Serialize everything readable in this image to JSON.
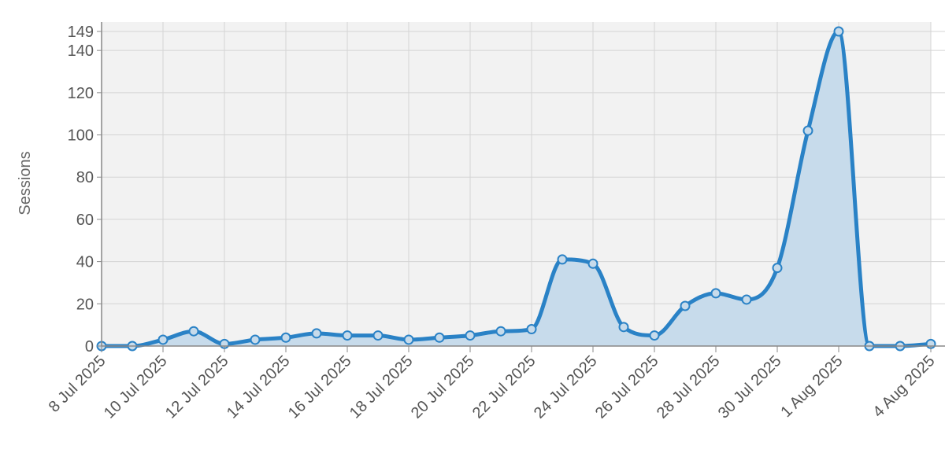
{
  "chart_data": {
    "type": "area",
    "ylabel": "Sessions",
    "xlabel": "",
    "title": "",
    "ylim": [
      0,
      149
    ],
    "y_ticks": [
      0,
      20,
      40,
      60,
      80,
      100,
      120,
      140,
      149
    ],
    "x_tick_labels": [
      "8 Jul 2025",
      "10 Jul 2025",
      "12 Jul 2025",
      "14 Jul 2025",
      "16 Jul 2025",
      "18 Jul 2025",
      "20 Jul 2025",
      "22 Jul 2025",
      "24 Jul 2025",
      "26 Jul 2025",
      "28 Jul 2025",
      "30 Jul 2025",
      "1 Aug 2025",
      "4 Aug 2025"
    ],
    "x_tick_dates": [
      "2025-07-08",
      "2025-07-10",
      "2025-07-12",
      "2025-07-14",
      "2025-07-16",
      "2025-07-18",
      "2025-07-20",
      "2025-07-22",
      "2025-07-24",
      "2025-07-26",
      "2025-07-28",
      "2025-07-30",
      "2025-08-01",
      "2025-08-04"
    ],
    "grid": true,
    "series": [
      {
        "name": "",
        "x": [
          "2025-07-08",
          "2025-07-09",
          "2025-07-10",
          "2025-07-11",
          "2025-07-12",
          "2025-07-13",
          "2025-07-14",
          "2025-07-15",
          "2025-07-16",
          "2025-07-17",
          "2025-07-18",
          "2025-07-19",
          "2025-07-20",
          "2025-07-21",
          "2025-07-22",
          "2025-07-23",
          "2025-07-24",
          "2025-07-25",
          "2025-07-26",
          "2025-07-27",
          "2025-07-28",
          "2025-07-29",
          "2025-07-30",
          "2025-07-31",
          "2025-08-01",
          "2025-08-02",
          "2025-08-03",
          "2025-08-04"
        ],
        "values": [
          0,
          0,
          3,
          7,
          1,
          3,
          4,
          6,
          5,
          5,
          3,
          4,
          5,
          7,
          8,
          41,
          39,
          9,
          5,
          19,
          25,
          22,
          37,
          102,
          149,
          0,
          0,
          1
        ]
      }
    ],
    "colors": {
      "line": "#2a82c6",
      "fill": "#c7dbeb",
      "plot_background": "#f2f2f2",
      "grid": "#d4d4d4",
      "axis": "#888888"
    }
  }
}
